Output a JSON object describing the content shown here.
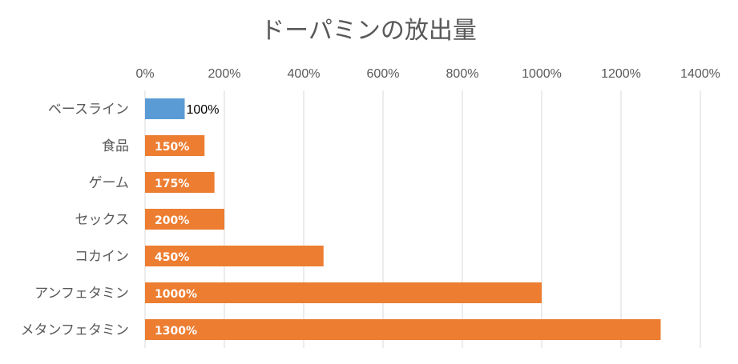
{
  "chart_data": {
    "type": "bar",
    "orientation": "horizontal",
    "title": "ドーパミンの放出量",
    "categories": [
      "ベースライン",
      "食品",
      "ゲーム",
      "セックス",
      "コカイン",
      "アンフェタミン",
      "メタンフェタミン"
    ],
    "values": [
      100,
      150,
      175,
      200,
      450,
      1000,
      1300
    ],
    "data_labels": [
      "100%",
      "150%",
      "175%",
      "200%",
      "450%",
      "1000%",
      "1300%"
    ],
    "xlim": [
      0,
      1400
    ],
    "x_ticks": [
      0,
      200,
      400,
      600,
      800,
      1000,
      1200,
      1400
    ],
    "x_tick_labels": [
      "0%",
      "200%",
      "400%",
      "600%",
      "800%",
      "1000%",
      "1200%",
      "1400%"
    ],
    "x_axis_position": "top",
    "grid": true,
    "colors": {
      "baseline": "#5b9bd5",
      "others": "#ed7d31",
      "grid": "#d9d9d9",
      "text": "#595959"
    },
    "baseline_index": 0
  }
}
